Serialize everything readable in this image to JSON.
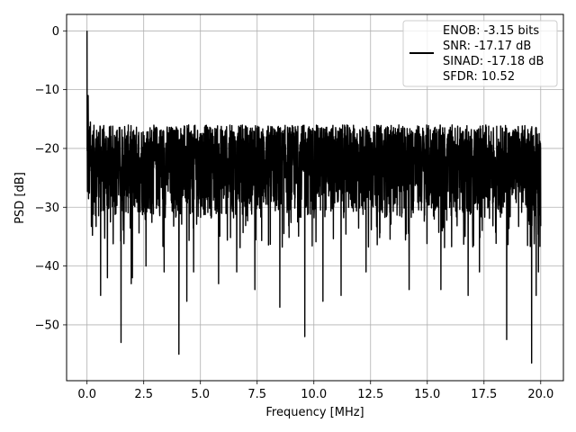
{
  "chart_data": {
    "type": "line",
    "title": "",
    "xlabel": "Frequency [MHz]",
    "ylabel": "PSD [dB]",
    "xlim": [
      -0.9,
      21.0
    ],
    "ylim": [
      -59.5,
      2.8
    ],
    "x_ticks": [
      0.0,
      2.5,
      5.0,
      7.5,
      10.0,
      12.5,
      15.0,
      17.5,
      20.0
    ],
    "x_tick_labels": [
      "0.0",
      "2.5",
      "5.0",
      "7.5",
      "10.0",
      "12.5",
      "15.0",
      "17.5",
      "20.0"
    ],
    "y_ticks": [
      0,
      -10,
      -20,
      -30,
      -40,
      -50
    ],
    "y_tick_labels": [
      "0",
      "−10",
      "−20",
      "−30",
      "−40",
      "−50"
    ],
    "grid": true,
    "legend_position": "top-right",
    "legend_entries": [
      "ENOB: -3.15 bits",
      "SNR: -17.17 dB",
      "SINAD: -17.18 dB",
      "SFDR: 10.52"
    ],
    "series": [
      {
        "color": "#000000",
        "noise_floor_db": [
          -32,
          -16
        ],
        "spikes": [
          {
            "x": 0.0,
            "y": 0.0
          },
          {
            "x": 0.05,
            "y": -11.0
          },
          {
            "x": 0.15,
            "y": -15.5
          },
          {
            "x": 0.6,
            "y": -45.0
          },
          {
            "x": 0.9,
            "y": -42.0
          },
          {
            "x": 1.5,
            "y": -53.0
          },
          {
            "x": 1.95,
            "y": -43.0
          },
          {
            "x": 2.0,
            "y": -42.0
          },
          {
            "x": 2.6,
            "y": -40.0
          },
          {
            "x": 3.4,
            "y": -41.0
          },
          {
            "x": 4.05,
            "y": -55.0
          },
          {
            "x": 4.4,
            "y": -46.0
          },
          {
            "x": 4.7,
            "y": -41.0
          },
          {
            "x": 5.8,
            "y": -43.0
          },
          {
            "x": 6.6,
            "y": -41.0
          },
          {
            "x": 7.4,
            "y": -44.0
          },
          {
            "x": 8.5,
            "y": -47.0
          },
          {
            "x": 9.6,
            "y": -52.0
          },
          {
            "x": 10.4,
            "y": -46.0
          },
          {
            "x": 11.2,
            "y": -45.0
          },
          {
            "x": 12.3,
            "y": -41.0
          },
          {
            "x": 14.2,
            "y": -44.0
          },
          {
            "x": 15.6,
            "y": -44.0
          },
          {
            "x": 16.8,
            "y": -45.0
          },
          {
            "x": 17.3,
            "y": -41.0
          },
          {
            "x": 18.5,
            "y": -52.5
          },
          {
            "x": 19.6,
            "y": -56.5
          },
          {
            "x": 19.8,
            "y": -45.0
          },
          {
            "x": 19.9,
            "y": -41.0
          }
        ]
      }
    ]
  }
}
